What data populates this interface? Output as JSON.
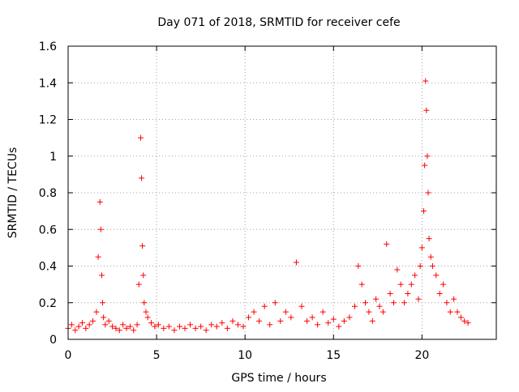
{
  "chart_data": {
    "type": "scatter",
    "title": "Day 071 of 2018, SRMTID for receiver cefe",
    "xlabel": "GPS time / hours",
    "ylabel": "SRMTID / TECUs",
    "xlim": [
      0,
      24.2
    ],
    "ylim": [
      0,
      1.6
    ],
    "xticks": [
      0,
      5,
      10,
      15,
      20
    ],
    "xtick_labels": [
      "0",
      "5",
      "10",
      "15",
      "20"
    ],
    "yticks": [
      0,
      0.2,
      0.4,
      0.6,
      0.8,
      1.0,
      1.2,
      1.4,
      1.6
    ],
    "ytick_labels": [
      "0",
      "0.2",
      "0.4",
      "0.6",
      "0.8",
      "1",
      "1.2",
      "1.4",
      "1.6"
    ],
    "grid": true,
    "marker": "+",
    "series": [
      {
        "name": "SRMTID",
        "color": "#ff0000",
        "x": [
          0.0,
          0.2,
          0.4,
          0.6,
          0.8,
          1.0,
          1.2,
          1.4,
          1.6,
          1.7,
          1.8,
          1.85,
          1.9,
          1.95,
          2.0,
          2.1,
          2.3,
          2.5,
          2.7,
          2.9,
          3.1,
          3.3,
          3.5,
          3.7,
          3.9,
          4.0,
          4.1,
          4.15,
          4.2,
          4.25,
          4.3,
          4.4,
          4.5,
          4.7,
          4.9,
          5.1,
          5.4,
          5.7,
          6.0,
          6.3,
          6.6,
          6.9,
          7.2,
          7.5,
          7.8,
          8.1,
          8.4,
          8.7,
          9.0,
          9.3,
          9.6,
          9.9,
          10.2,
          10.5,
          10.8,
          11.1,
          11.4,
          11.7,
          12.0,
          12.3,
          12.6,
          12.9,
          13.2,
          13.5,
          13.8,
          14.1,
          14.4,
          14.7,
          15.0,
          15.3,
          15.6,
          15.9,
          16.2,
          16.4,
          16.6,
          16.8,
          17.0,
          17.2,
          17.4,
          17.6,
          17.8,
          18.0,
          18.2,
          18.4,
          18.6,
          18.8,
          19.0,
          19.2,
          19.4,
          19.6,
          19.8,
          19.9,
          20.0,
          20.1,
          20.15,
          20.2,
          20.25,
          20.3,
          20.35,
          20.4,
          20.5,
          20.6,
          20.8,
          21.0,
          21.2,
          21.4,
          21.6,
          21.8,
          22.0,
          22.2,
          22.4,
          22.6
        ],
        "y": [
          0.06,
          0.08,
          0.05,
          0.07,
          0.09,
          0.06,
          0.08,
          0.1,
          0.15,
          0.45,
          0.75,
          0.6,
          0.35,
          0.2,
          0.12,
          0.08,
          0.1,
          0.07,
          0.06,
          0.05,
          0.08,
          0.06,
          0.07,
          0.05,
          0.08,
          0.3,
          1.1,
          0.88,
          0.51,
          0.35,
          0.2,
          0.15,
          0.12,
          0.09,
          0.07,
          0.08,
          0.06,
          0.07,
          0.05,
          0.07,
          0.06,
          0.08,
          0.06,
          0.07,
          0.05,
          0.08,
          0.07,
          0.09,
          0.06,
          0.1,
          0.08,
          0.07,
          0.12,
          0.15,
          0.1,
          0.18,
          0.08,
          0.2,
          0.1,
          0.15,
          0.12,
          0.42,
          0.18,
          0.1,
          0.12,
          0.08,
          0.15,
          0.09,
          0.11,
          0.07,
          0.1,
          0.12,
          0.18,
          0.4,
          0.3,
          0.2,
          0.15,
          0.1,
          0.22,
          0.18,
          0.15,
          0.52,
          0.25,
          0.2,
          0.38,
          0.3,
          0.2,
          0.25,
          0.3,
          0.35,
          0.22,
          0.4,
          0.5,
          0.7,
          0.95,
          1.41,
          1.25,
          1.0,
          0.8,
          0.55,
          0.45,
          0.4,
          0.35,
          0.25,
          0.3,
          0.2,
          0.15,
          0.22,
          0.15,
          0.12,
          0.1,
          0.09
        ]
      }
    ]
  }
}
